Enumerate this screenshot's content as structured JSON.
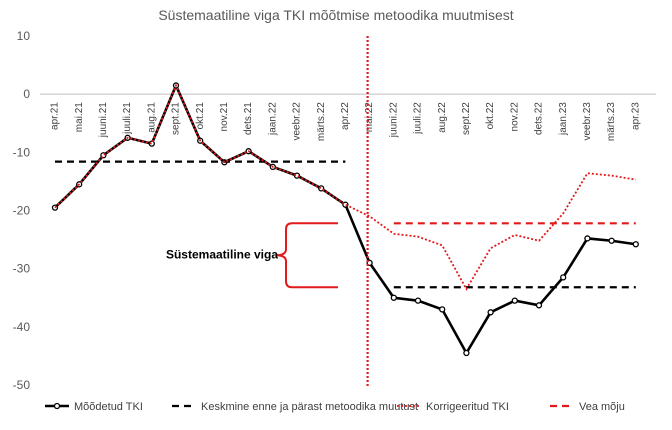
{
  "chart_data": {
    "type": "line",
    "title": "Süstemaatiline viga TKI mõõtmise metoodika muutmisest",
    "xlabel": "",
    "ylabel": "",
    "ylim": [
      -50,
      10
    ],
    "yticks": [
      10,
      0,
      -10,
      -20,
      -30,
      -40,
      -50
    ],
    "grid": false,
    "legend_position": "bottom",
    "categories": [
      "apr.21",
      "mai.21",
      "juuni.21",
      "juuli.21",
      "aug.21",
      "sept.21",
      "okt.21",
      "nov.21",
      "dets.21",
      "jaan.22",
      "veebr.22",
      "märts.22",
      "apr.22",
      "mai.22",
      "juuni.22",
      "juuli.22",
      "aug.22",
      "sept.22",
      "okt.22",
      "nov.22",
      "dets.22",
      "jaan.23",
      "veebr.23",
      "märts.23",
      "apr.23"
    ],
    "series": [
      {
        "name": "Mõõdetud TKI",
        "style": "solid-black-markers",
        "values": [
          -19.5,
          -15.5,
          -10.5,
          -7.5,
          -8.5,
          1.5,
          -8.0,
          -11.7,
          -9.8,
          -12.5,
          -14.0,
          -16.2,
          -19.0,
          -29.0,
          -35.0,
          -35.5,
          -37.0,
          -44.5,
          -37.5,
          -35.5,
          -36.3,
          -31.5,
          -24.8,
          -25.2,
          -25.8
        ]
      },
      {
        "name": "Keskmine enne ja pärast metoodika muutust",
        "style": "dashed-black",
        "segments": [
          {
            "from": "apr.21",
            "to": "apr.22",
            "value": -11.6
          },
          {
            "from": "juuni.22",
            "to": "apr.23",
            "value": -33.2
          }
        ]
      },
      {
        "name": "Korrigeeritud TKI",
        "style": "dotted-red",
        "values": [
          -19.5,
          -15.5,
          -10.5,
          -7.5,
          -8.5,
          1.5,
          -8.0,
          -11.7,
          -9.8,
          -12.5,
          -14.0,
          -16.2,
          -19.0,
          -21.0,
          -24.0,
          -24.5,
          -26.0,
          -33.5,
          -26.5,
          -24.2,
          -25.2,
          -20.5,
          -13.6,
          -14.0,
          -14.7
        ]
      },
      {
        "name": "Vea mõju",
        "style": "dashed-red",
        "segments": [
          {
            "from": "juuni.22",
            "to": "apr.23",
            "value": -22.2
          }
        ]
      }
    ],
    "annotations": [
      {
        "text": "Süstemaatiline viga",
        "type": "brace",
        "from": -22.2,
        "to": -33.2
      },
      {
        "text": "",
        "type": "vertical-dotted-red-line",
        "at": "mai.22"
      }
    ],
    "colors": {
      "black": "#000000",
      "red": "#e31a1c",
      "brace": "#e31a1c",
      "axis": "#bfbfbf"
    }
  }
}
